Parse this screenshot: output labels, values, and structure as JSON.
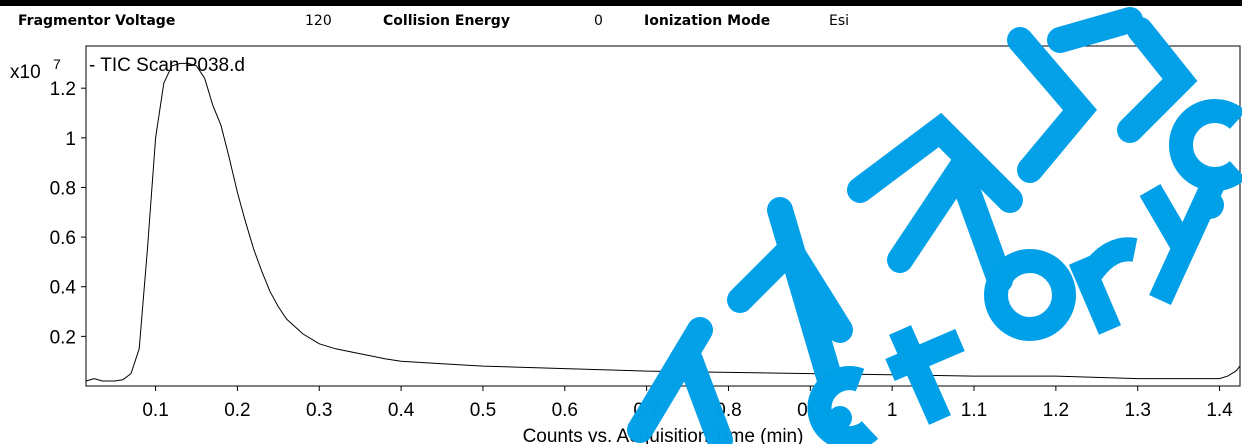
{
  "params": [
    {
      "label": "Fragmentor Voltage",
      "value": "120"
    },
    {
      "label": "Collision Energy",
      "value": "0"
    },
    {
      "label": "Ionization Mode",
      "value": "Esi"
    }
  ],
  "colors": {
    "trace": "#000000",
    "watermark": "#00a0e9",
    "frame": "#000000"
  },
  "chart_data": {
    "type": "line",
    "title": "- TIC Scan P038.d",
    "xlabel": "Counts vs. Acquisition Time (min)",
    "ylabel": "",
    "y_multiplier_label": "x10",
    "y_exponent": "7",
    "xlim": [
      0.015,
      1.425
    ],
    "ylim": [
      0,
      1.37
    ],
    "xticks": [
      0.1,
      0.2,
      0.3,
      0.4,
      0.5,
      0.6,
      0.7,
      0.8,
      0.9,
      1.0,
      1.1,
      1.2,
      1.3,
      1.4
    ],
    "xtick_labels": [
      "0.1",
      "0.2",
      "0.3",
      "0.4",
      "0.5",
      "0.6",
      "0.7",
      "0.8",
      "0.9",
      "1",
      "1.1",
      "1.2",
      "1.3",
      "1.4"
    ],
    "yticks": [
      0.2,
      0.4,
      0.6,
      0.8,
      1.0,
      1.2
    ],
    "ytick_labels": [
      "0.2",
      "0.4",
      "0.6",
      "0.8",
      "1",
      "1.2"
    ],
    "grid": false,
    "legend": "none",
    "series": [
      {
        "x": [
          0.015,
          0.025,
          0.035,
          0.05,
          0.06,
          0.07,
          0.075,
          0.08,
          0.09,
          0.1,
          0.11,
          0.12,
          0.13,
          0.14,
          0.15,
          0.16,
          0.17,
          0.18,
          0.19,
          0.2,
          0.21,
          0.22,
          0.23,
          0.24,
          0.25,
          0.26,
          0.28,
          0.3,
          0.32,
          0.35,
          0.38,
          0.4,
          0.45,
          0.5,
          0.6,
          0.7,
          0.8,
          0.9,
          1.0,
          1.1,
          1.2,
          1.3,
          1.4,
          1.41,
          1.42,
          1.425
        ],
        "y": [
          0.02,
          0.03,
          0.02,
          0.02,
          0.025,
          0.05,
          0.1,
          0.15,
          0.55,
          1.0,
          1.22,
          1.29,
          1.3,
          1.3,
          1.29,
          1.24,
          1.13,
          1.05,
          0.92,
          0.78,
          0.66,
          0.55,
          0.46,
          0.38,
          0.32,
          0.27,
          0.21,
          0.17,
          0.15,
          0.13,
          0.11,
          0.1,
          0.09,
          0.08,
          0.07,
          0.06,
          0.055,
          0.05,
          0.045,
          0.04,
          0.04,
          0.03,
          0.03,
          0.04,
          0.06,
          0.08
        ]
      }
    ]
  }
}
